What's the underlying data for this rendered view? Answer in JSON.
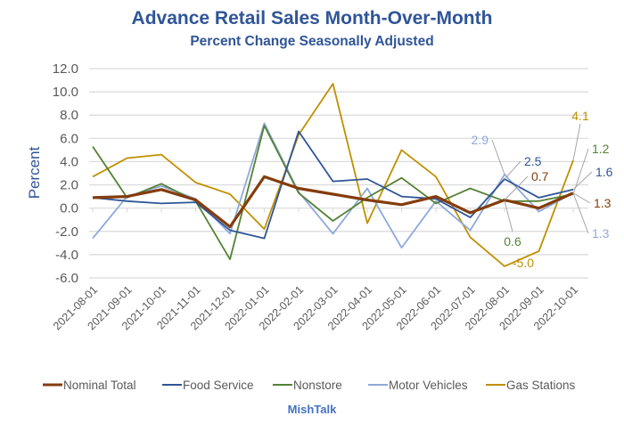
{
  "chart_data": {
    "type": "line",
    "title": "Advance Retail Sales Month-Over-Month",
    "subtitle": "Percent Change Seasonally Adjusted",
    "xlabel": "",
    "ylabel": "Percent",
    "ylim": [
      -6,
      12
    ],
    "yticks": [
      "12.0",
      "10.0",
      "8.0",
      "6.0",
      "4.0",
      "2.0",
      "0.0",
      "-2.0",
      "-4.0",
      "-6.0"
    ],
    "ytick_values": [
      12,
      10,
      8,
      6,
      4,
      2,
      0,
      -2,
      -4,
      -6
    ],
    "grid": true,
    "legend_position": "bottom",
    "categories": [
      "2021-08-01",
      "2021-09-01",
      "2021-10-01",
      "2021-11-01",
      "2021-12-01",
      "2022-01-01",
      "2022-02-01",
      "2022-03-01",
      "2022-04-01",
      "2022-05-01",
      "2022-06-01",
      "2022-07-01",
      "2022-08-01",
      "2022-09-01",
      "2022-10-01"
    ],
    "series": [
      {
        "name": "Nominal Total",
        "color": "#843C0C",
        "values": [
          0.9,
          1.0,
          1.6,
          0.7,
          -1.6,
          2.7,
          1.7,
          1.2,
          0.7,
          0.3,
          1.0,
          -0.4,
          0.7,
          0.0,
          1.3
        ]
      },
      {
        "name": "Food Service",
        "color": "#2F5597",
        "values": [
          0.9,
          0.6,
          0.4,
          0.5,
          -1.9,
          -2.6,
          6.6,
          2.3,
          2.5,
          1.0,
          0.8,
          -0.8,
          2.5,
          0.9,
          1.6
        ]
      },
      {
        "name": "Nonstore",
        "color": "#548235",
        "values": [
          5.3,
          0.9,
          2.1,
          0.6,
          -4.4,
          7.1,
          1.3,
          -1.1,
          0.9,
          2.6,
          0.4,
          1.7,
          0.6,
          0.6,
          1.2
        ]
      },
      {
        "name": "Motor Vehicles",
        "color": "#8EA9DB",
        "values": [
          -2.6,
          1.0,
          1.9,
          0.8,
          -2.2,
          7.3,
          1.4,
          -2.2,
          1.7,
          -3.4,
          0.6,
          -1.9,
          2.9,
          -0.3,
          1.3
        ]
      },
      {
        "name": "Gas Stations",
        "color": "#BF9000",
        "values": [
          2.7,
          4.3,
          4.6,
          2.2,
          1.2,
          -1.8,
          6.3,
          10.7,
          -1.3,
          5.0,
          2.7,
          -2.5,
          -5.0,
          -3.7,
          4.1
        ]
      }
    ],
    "annotations": [
      {
        "series": "Motor Vehicles",
        "category": "2022-08-01",
        "text": "2.9"
      },
      {
        "series": "Food Service",
        "category": "2022-08-01",
        "text": "2.5"
      },
      {
        "series": "Nominal Total",
        "category": "2022-08-01",
        "text": "0.7"
      },
      {
        "series": "Nonstore",
        "category": "2022-08-01",
        "text": "0.6"
      },
      {
        "series": "Gas Stations",
        "category": "2022-08-01",
        "text": "-5.0"
      },
      {
        "series": "Gas Stations",
        "category": "2022-10-01",
        "text": "4.1"
      },
      {
        "series": "Nonstore",
        "category": "2022-10-01",
        "text": "1.2"
      },
      {
        "series": "Food Service",
        "category": "2022-10-01",
        "text": "1.6"
      },
      {
        "series": "Nominal Total",
        "category": "2022-10-01",
        "text": "1.3"
      },
      {
        "series": "Motor Vehicles",
        "category": "2022-10-01",
        "text": "1.3"
      }
    ],
    "credit": "MishTalk"
  }
}
